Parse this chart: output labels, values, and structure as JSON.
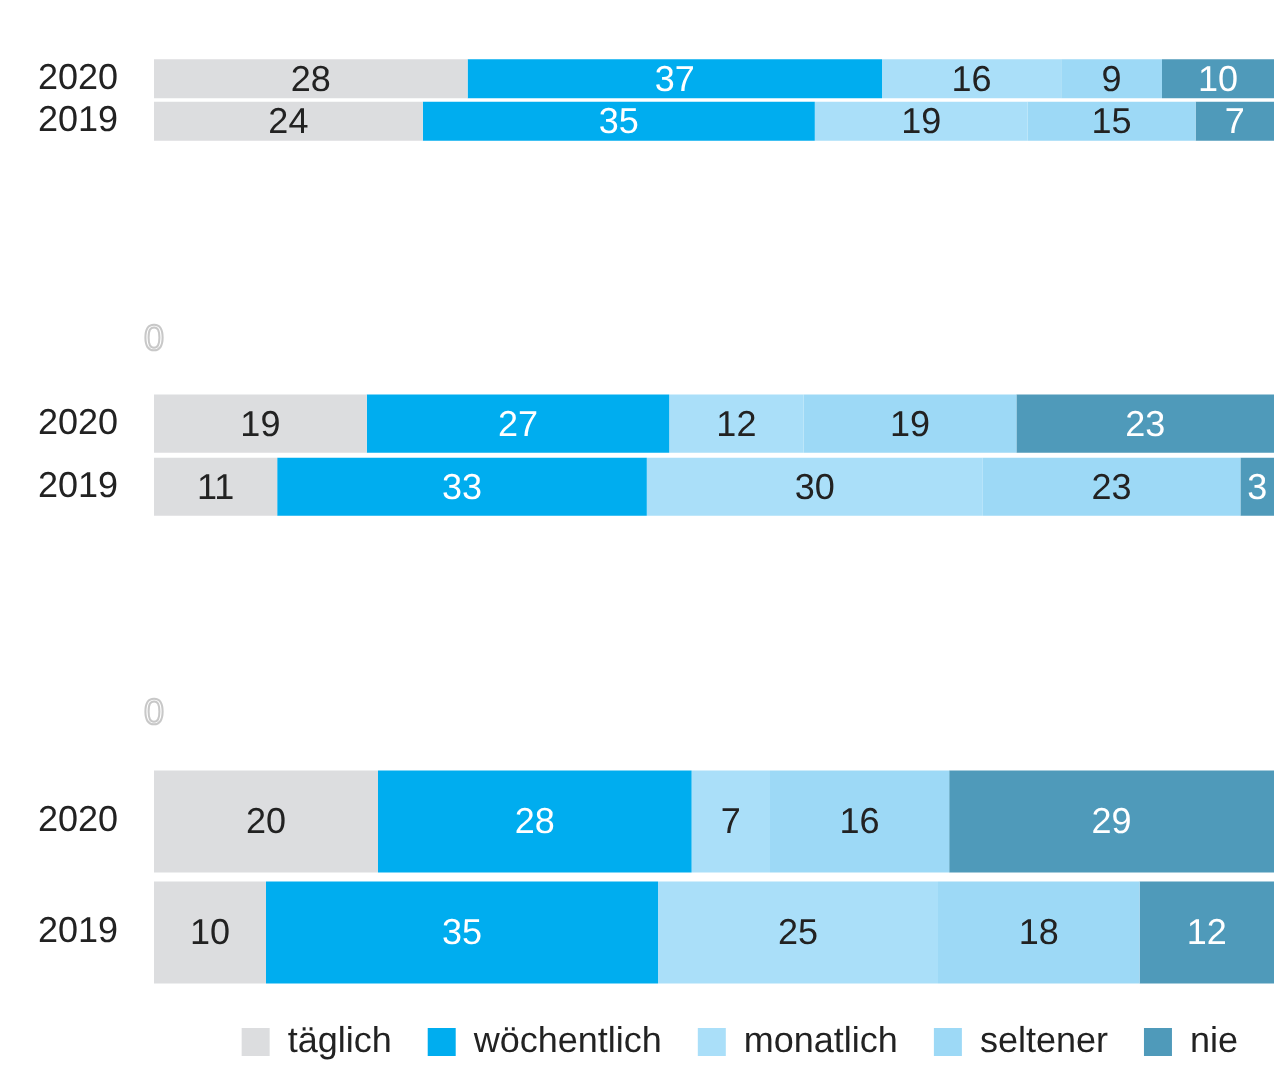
{
  "chart_data": [
    {
      "type": "bar",
      "orientation": "horizontal",
      "stacked": true,
      "categories": [
        "2020",
        "2019"
      ],
      "xlim": [
        0,
        100
      ],
      "tick_labels": "y",
      "grid": false,
      "legend": false,
      "data_labels": true,
      "series": [
        {
          "color": "#dcdddf",
          "values": [
            28,
            24
          ]
        },
        {
          "color": "#00adef",
          "values": [
            37,
            35
          ]
        },
        {
          "color": "#aadff9",
          "values": [
            16,
            19
          ]
        },
        {
          "color": "#9dd9f6",
          "values": [
            9,
            15
          ]
        },
        {
          "color": "#4f9aba",
          "values": [
            10,
            7
          ]
        }
      ]
    },
    {
      "type": "bar",
      "orientation": "horizontal",
      "stacked": true,
      "categories": [
        "2020",
        "2019"
      ],
      "xlim": [
        0,
        100
      ],
      "tick_labels": "y",
      "grid": false,
      "legend": false,
      "data_labels": true,
      "annotations": [
        "0"
      ],
      "series": [
        {
          "color": "#dcdddf",
          "values": [
            19,
            11
          ]
        },
        {
          "color": "#00adef",
          "values": [
            27,
            33
          ]
        },
        {
          "color": "#aadff9",
          "values": [
            12,
            30
          ]
        },
        {
          "color": "#9dd9f6",
          "values": [
            19,
            23
          ]
        },
        {
          "color": "#4f9aba",
          "values": [
            23,
            3
          ]
        }
      ]
    },
    {
      "type": "bar",
      "orientation": "horizontal",
      "stacked": true,
      "categories": [
        "2020",
        "2019"
      ],
      "xlim": [
        0,
        100
      ],
      "tick_labels": "y",
      "grid": false,
      "legend": "bottom",
      "data_labels": true,
      "annotations": [
        "0"
      ],
      "series": [
        {
          "name": "täglich",
          "color": "#dcdddf",
          "values": [
            20,
            10
          ]
        },
        {
          "name": "wöchentlich",
          "color": "#00adef",
          "values": [
            28,
            35
          ]
        },
        {
          "name": "monatlich",
          "color": "#aadff9",
          "values": [
            7,
            25
          ]
        },
        {
          "name": "seltener",
          "color": "#9dd9f6",
          "values": [
            16,
            18
          ]
        },
        {
          "name": "nie",
          "color": "#4f9aba",
          "values": [
            29,
            12
          ]
        }
      ]
    }
  ]
}
